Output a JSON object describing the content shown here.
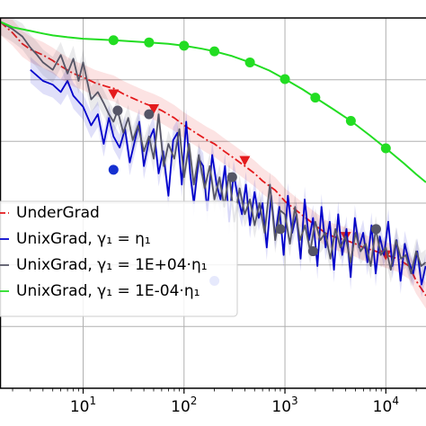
{
  "chart_data": {
    "type": "line",
    "xscale": "log",
    "xlim": [
      1.5,
      25000
    ],
    "ylim": [
      0,
      1
    ],
    "grid": true,
    "legend_position": "center-left",
    "xticks": [
      {
        "value": 10,
        "base": "10",
        "exp": "1"
      },
      {
        "value": 100,
        "base": "10",
        "exp": "2"
      },
      {
        "value": 1000,
        "base": "10",
        "exp": "3"
      },
      {
        "value": 10000,
        "base": "10",
        "exp": "4"
      }
    ],
    "series": [
      {
        "name": "UnderGrad",
        "color": "#e41a1c",
        "style": "dashdot",
        "marker": "triangle-down",
        "x": [
          1.5,
          2,
          2.5,
          3,
          4,
          5,
          6,
          8,
          10,
          13,
          17,
          20,
          25,
          30,
          40,
          50,
          60,
          80,
          100,
          130,
          170,
          200,
          250,
          300,
          400,
          500,
          600,
          800,
          1000,
          1300,
          1700,
          2000,
          2500,
          3000,
          4000,
          5000,
          6000,
          8000,
          10000,
          13000,
          17000,
          20000,
          25000
        ],
        "y": [
          0.99,
          0.96,
          0.93,
          0.915,
          0.9,
          0.885,
          0.87,
          0.85,
          0.84,
          0.825,
          0.815,
          0.81,
          0.795,
          0.785,
          0.77,
          0.76,
          0.75,
          0.73,
          0.71,
          0.69,
          0.67,
          0.66,
          0.64,
          0.625,
          0.6,
          0.58,
          0.56,
          0.535,
          0.505,
          0.48,
          0.455,
          0.44,
          0.42,
          0.41,
          0.4,
          0.39,
          0.38,
          0.37,
          0.36,
          0.35,
          0.33,
          0.29,
          0.25
        ],
        "marker_x": [
          20,
          50,
          400,
          4000,
          10000
        ],
        "marker_y": [
          0.795,
          0.755,
          0.615,
          0.41,
          0.36
        ]
      },
      {
        "name": "UnixGrad, γ₁ = η₁",
        "color": "#0000cc",
        "style": "solid",
        "marker": "circle",
        "x": [
          3,
          4,
          5,
          6,
          7,
          8,
          10,
          12,
          14,
          16,
          18,
          20,
          23,
          26,
          29,
          32,
          36,
          40,
          45,
          50,
          56,
          62,
          70,
          78,
          86,
          95,
          105,
          115,
          125,
          140,
          155,
          170,
          190,
          210,
          230,
          255,
          280,
          310,
          340,
          375,
          410,
          450,
          500,
          550,
          600,
          660,
          730,
          800,
          880,
          970,
          1070,
          1180,
          1300,
          1430,
          1570,
          1730,
          1900,
          2100,
          2300,
          2530,
          2780,
          3060,
          3370,
          3700,
          4070,
          4480,
          4930,
          5420,
          5960,
          6560,
          7210,
          7930,
          8720,
          9600,
          10560,
          11600,
          12800,
          14000,
          15400,
          17000,
          18700,
          20500,
          22600,
          24800
        ],
        "y": [
          0.86,
          0.83,
          0.82,
          0.8,
          0.83,
          0.79,
          0.76,
          0.71,
          0.74,
          0.66,
          0.73,
          0.68,
          0.65,
          0.7,
          0.61,
          0.66,
          0.72,
          0.6,
          0.67,
          0.7,
          0.58,
          0.64,
          0.52,
          0.67,
          0.69,
          0.55,
          0.72,
          0.58,
          0.5,
          0.62,
          0.6,
          0.48,
          0.63,
          0.55,
          0.51,
          0.6,
          0.45,
          0.58,
          0.52,
          0.47,
          0.55,
          0.44,
          0.53,
          0.46,
          0.5,
          0.38,
          0.52,
          0.41,
          0.49,
          0.36,
          0.52,
          0.42,
          0.47,
          0.35,
          0.51,
          0.4,
          0.46,
          0.33,
          0.49,
          0.38,
          0.45,
          0.32,
          0.47,
          0.36,
          0.43,
          0.3,
          0.46,
          0.38,
          0.42,
          0.34,
          0.44,
          0.31,
          0.41,
          0.36,
          0.45,
          0.33,
          0.4,
          0.29,
          0.39,
          0.34,
          0.31,
          0.37,
          0.28,
          0.33
        ],
        "marker_x": [
          20,
          200
        ],
        "marker_y": [
          0.59,
          0.29
        ]
      },
      {
        "name": "UnixGrad, γ₁ = 1E+04·η₁",
        "color": "#555566",
        "style": "solid",
        "marker": "circle",
        "x": [
          1.5,
          2,
          2.5,
          3,
          3.5,
          4,
          5,
          6,
          7,
          8,
          9,
          10,
          12,
          14,
          16,
          18,
          20,
          22,
          25,
          28,
          31,
          35,
          40,
          45,
          50,
          56,
          63,
          70,
          80,
          90,
          100,
          112,
          125,
          140,
          160,
          180,
          200,
          225,
          250,
          280,
          315,
          355,
          400,
          450,
          500,
          560,
          630,
          710,
          800,
          900,
          1000,
          1120,
          1260,
          1410,
          1580,
          1780,
          2000,
          2240,
          2510,
          2820,
          3160,
          3550,
          3980,
          4470,
          5010,
          5620,
          6310,
          7080,
          7940,
          8910,
          10000,
          11200,
          12600,
          14100,
          15800,
          17800,
          20000,
          22400,
          24800
        ],
        "y": [
          0.99,
          0.97,
          0.95,
          0.92,
          0.9,
          0.88,
          0.86,
          0.9,
          0.85,
          0.89,
          0.83,
          0.88,
          0.78,
          0.8,
          0.77,
          0.74,
          0.72,
          0.75,
          0.69,
          0.73,
          0.67,
          0.71,
          0.64,
          0.68,
          0.62,
          0.74,
          0.6,
          0.66,
          0.62,
          0.7,
          0.57,
          0.66,
          0.55,
          0.63,
          0.54,
          0.6,
          0.51,
          0.57,
          0.49,
          0.58,
          0.45,
          0.54,
          0.47,
          0.51,
          0.44,
          0.5,
          0.42,
          0.55,
          0.4,
          0.48,
          0.47,
          0.39,
          0.49,
          0.4,
          0.44,
          0.37,
          0.45,
          0.4,
          0.42,
          0.35,
          0.43,
          0.38,
          0.41,
          0.34,
          0.42,
          0.37,
          0.39,
          0.33,
          0.43,
          0.36,
          0.38,
          0.32,
          0.4,
          0.35,
          0.36,
          0.31,
          0.37,
          0.33,
          0.34
        ],
        "marker_x": [
          22,
          45,
          300,
          900,
          1900,
          8000
        ],
        "marker_y": [
          0.75,
          0.74,
          0.57,
          0.43,
          0.37,
          0.43
        ]
      },
      {
        "name": "UnixGrad, γ₁ = 1E-04·η₁",
        "color": "#22dd22",
        "style": "solid",
        "marker": "circle",
        "x": [
          1.5,
          2,
          3,
          4,
          5,
          7,
          10,
          14,
          20,
          30,
          45,
          70,
          100,
          150,
          200,
          300,
          450,
          700,
          1000,
          1500,
          2000,
          3000,
          4500,
          7000,
          10000,
          15000,
          20000,
          25000
        ],
        "y": [
          0.99,
          0.975,
          0.965,
          0.958,
          0.953,
          0.948,
          0.944,
          0.942,
          0.94,
          0.937,
          0.934,
          0.93,
          0.925,
          0.917,
          0.91,
          0.897,
          0.88,
          0.858,
          0.835,
          0.807,
          0.785,
          0.754,
          0.722,
          0.682,
          0.648,
          0.608,
          0.578,
          0.556
        ],
        "marker_x": [
          20,
          45,
          100,
          200,
          450,
          1000,
          2000,
          4500,
          10000
        ],
        "marker_y": [
          0.94,
          0.934,
          0.925,
          0.91,
          0.88,
          0.835,
          0.785,
          0.722,
          0.648
        ]
      }
    ]
  }
}
